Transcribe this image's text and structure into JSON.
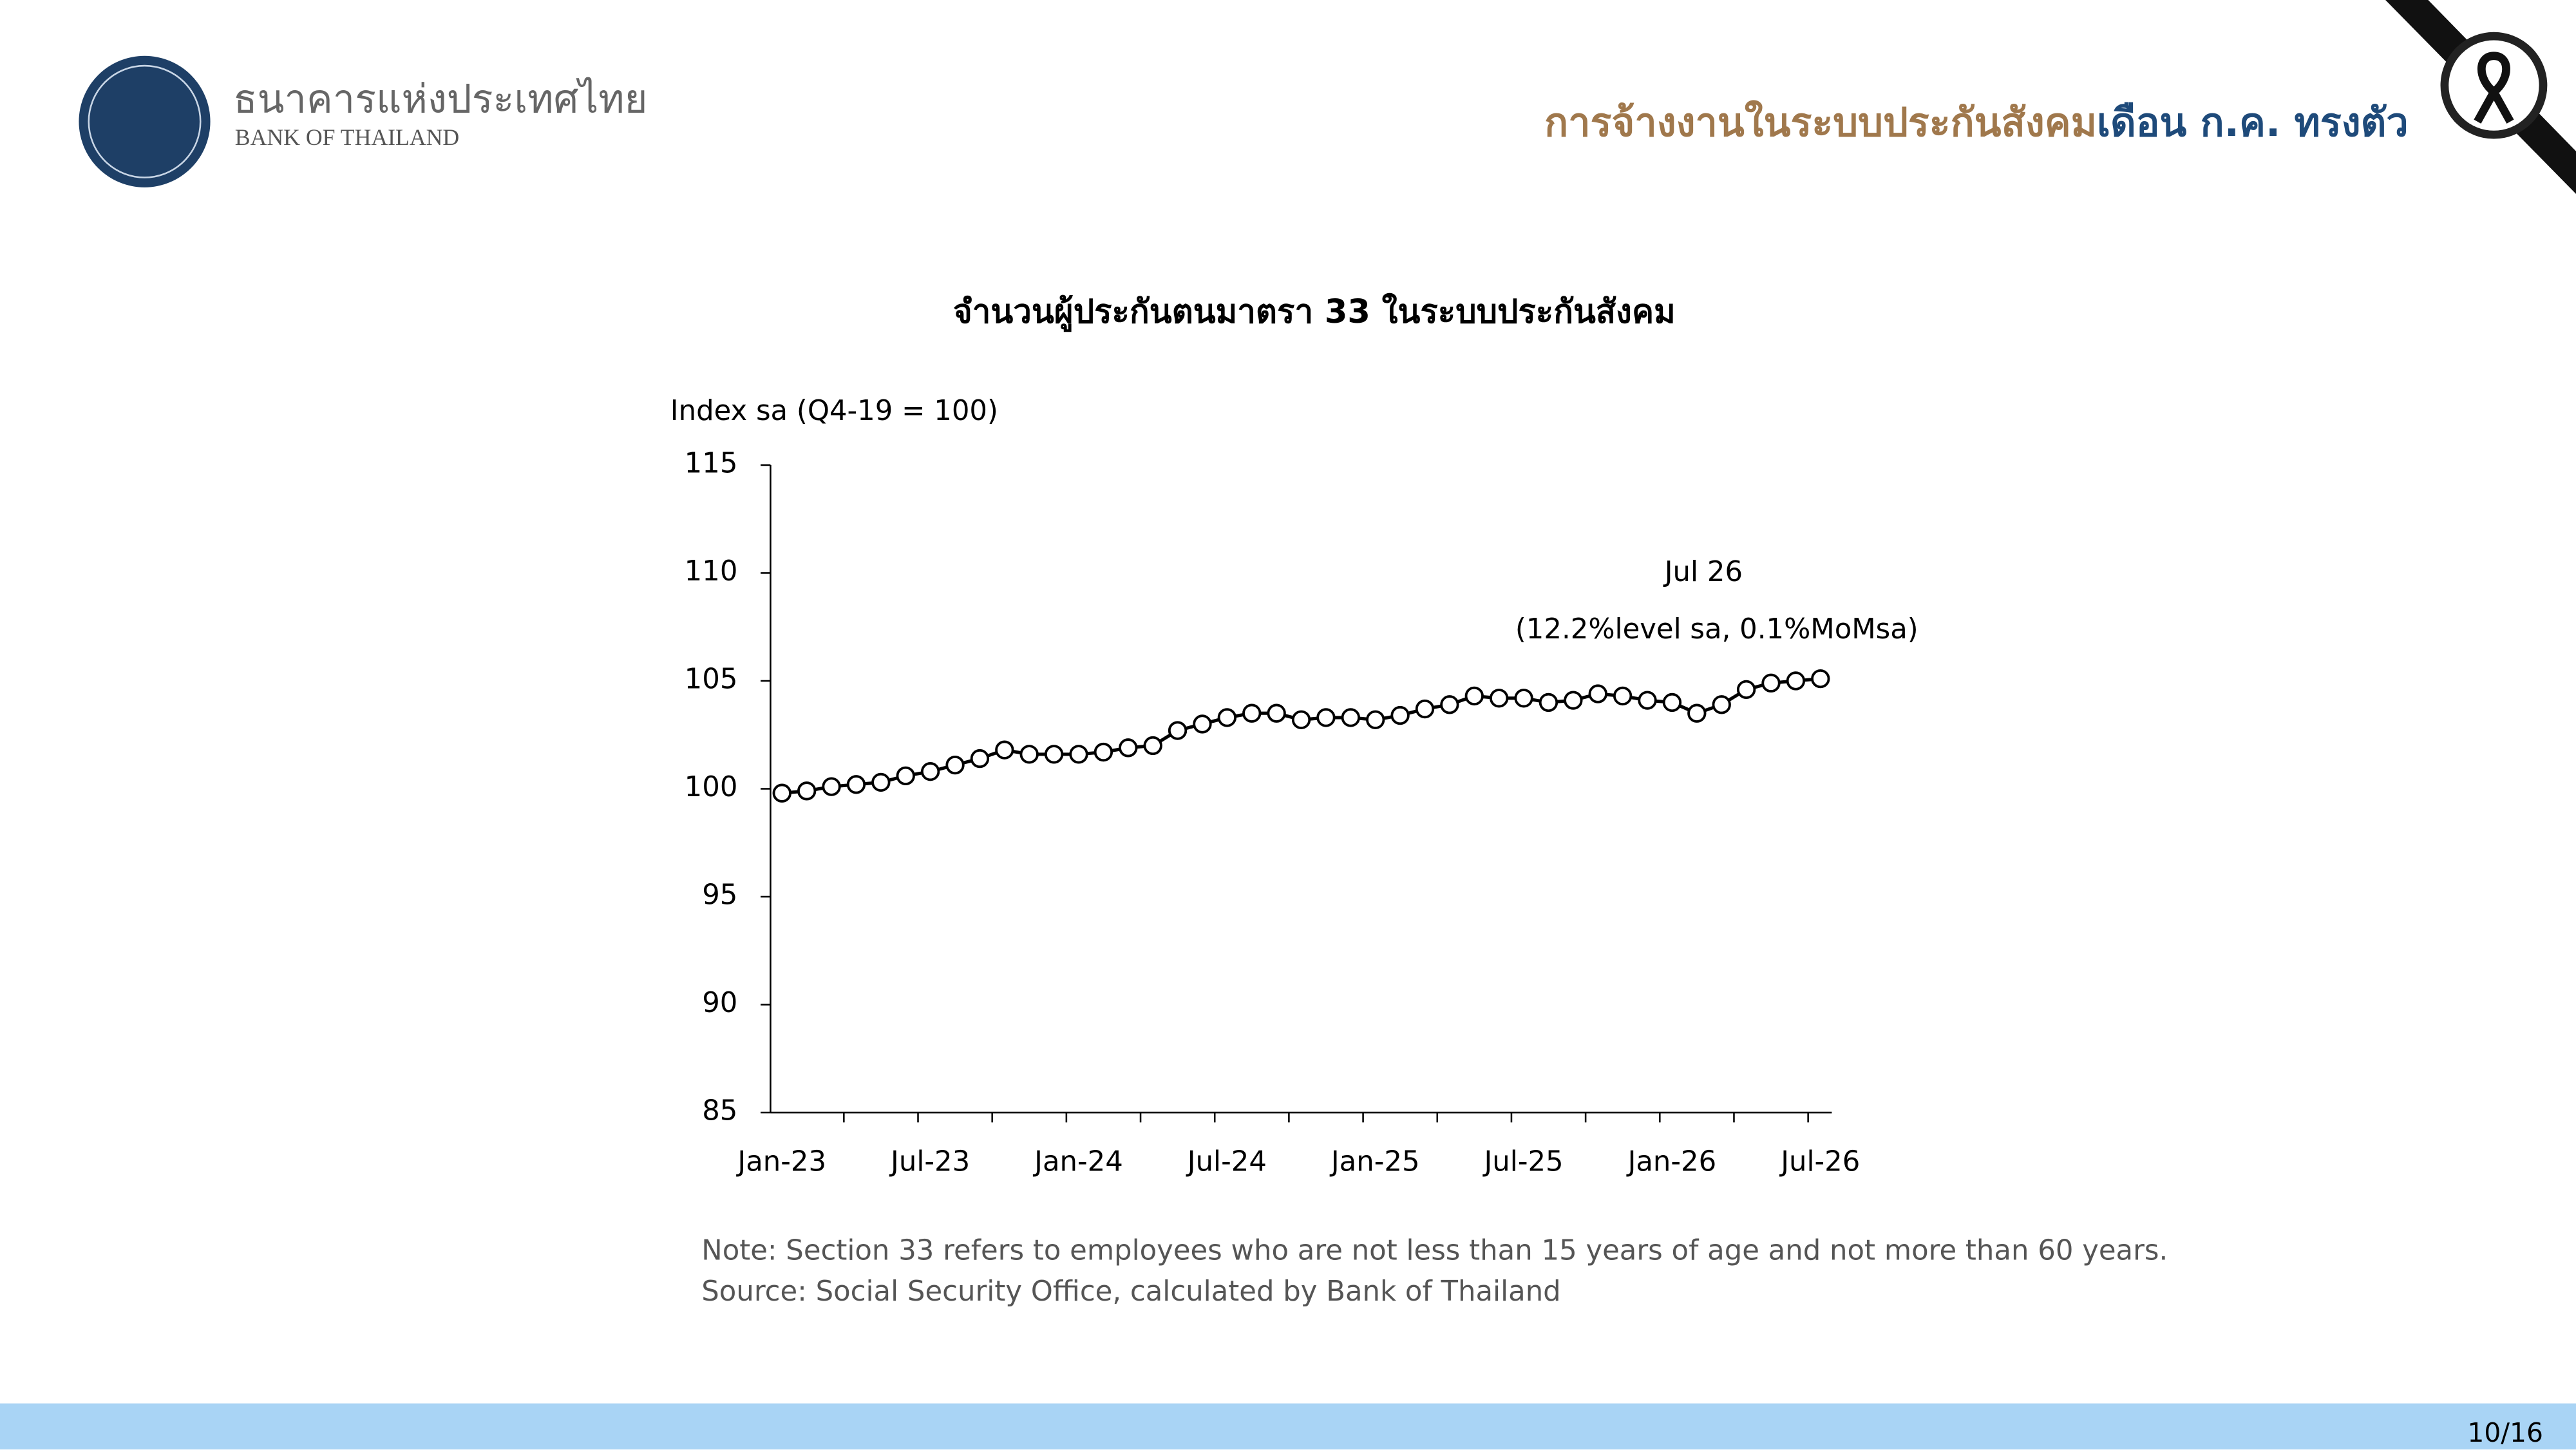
{
  "header": {
    "bank_name_thai": "ธนาคารแห่งประเทศไทย",
    "bank_name": "BANK OF THAILAND",
    "headline_part1": "การจ้างงานในระบบประกันสังคม",
    "headline_part2": "เดือน ก.ค. ทรงตัว"
  },
  "chart_data": {
    "type": "line",
    "title": "จำนวนผู้ประกันตนมาตรา 33 ในระบบประกันสังคม",
    "y_label": "Index sa (Q4-19 = 100)",
    "categories": [
      "Jan-23",
      null,
      null,
      null,
      null,
      null,
      "Jul-23",
      null,
      null,
      null,
      null,
      null,
      "Jan-24",
      null,
      null,
      null,
      null,
      null,
      "Jul-24",
      null,
      null,
      null,
      null,
      null,
      "Jan-25",
      null,
      null,
      null,
      null,
      null,
      "Jul-25",
      null,
      null,
      null,
      null,
      null,
      "Jan-26",
      null,
      null,
      null,
      null,
      null,
      "Jul-26"
    ],
    "series": [
      {
        "name": "Index sa",
        "color": "#000000",
        "values": [
          99.8,
          99.9,
          100.1,
          100.2,
          100.3,
          100.6,
          100.8,
          101.1,
          101.4,
          101.8,
          101.6,
          101.6,
          101.6,
          101.7,
          101.9,
          102.0,
          102.7,
          103.0,
          103.3,
          103.5,
          103.5,
          103.2,
          103.3,
          103.3,
          103.2,
          103.4,
          103.7,
          103.9,
          104.3,
          104.2,
          104.2,
          104.0,
          104.1,
          104.4,
          104.3,
          104.1,
          104.0,
          103.5,
          103.9,
          104.6,
          104.9,
          105.0,
          105.1
        ]
      }
    ],
    "ylim": [
      85,
      115
    ],
    "yticks": [
      85,
      90,
      95,
      100,
      105,
      110,
      115
    ],
    "grid": false,
    "annotations": [
      "Jul 26",
      "(12.2%level sa, 0.1%MoMsa)"
    ]
  },
  "footer": {
    "note": "Note: Section 33 refers to employees who are not less than 15 years of age and not more than 60 years.",
    "source": "Source: Social Security Office, calculated by Bank of Thailand",
    "page": "10/16"
  }
}
